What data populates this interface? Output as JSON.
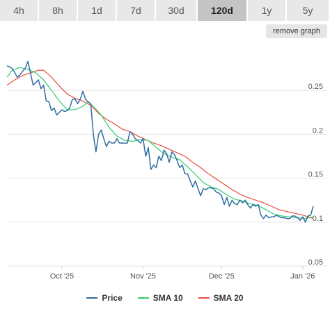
{
  "tabs": [
    {
      "label": "4h",
      "active": false
    },
    {
      "label": "8h",
      "active": false
    },
    {
      "label": "1d",
      "active": false
    },
    {
      "label": "7d",
      "active": false
    },
    {
      "label": "30d",
      "active": false
    },
    {
      "label": "120d",
      "active": true
    },
    {
      "label": "1y",
      "active": false
    },
    {
      "label": "5y",
      "active": false
    }
  ],
  "remove_button": {
    "label": "remove graph"
  },
  "colors": {
    "price": "#2e6da4",
    "sma10": "#2ecc71",
    "sma20": "#e74c3c",
    "grid": "#e6e6e6"
  },
  "chart_data": {
    "type": "line",
    "ylim": [
      0.05,
      0.3
    ],
    "yticks": [
      {
        "value": 0.25,
        "label": "0.25"
      },
      {
        "value": 0.2,
        "label": "0.2"
      },
      {
        "value": 0.15,
        "label": "0.15"
      },
      {
        "value": 0.1,
        "label": "0.1"
      },
      {
        "value": 0.05,
        "label": "0.05"
      }
    ],
    "xlim": [
      "2025-09-10",
      "2026-01-10"
    ],
    "xticks": [
      {
        "value": "2025-10-01",
        "label": "Oct '25"
      },
      {
        "value": "2025-11-01",
        "label": "Nov '25"
      },
      {
        "value": "2025-12-01",
        "label": "Dec '25"
      },
      {
        "value": "2026-01-01",
        "label": "Jan '26"
      }
    ],
    "series": [
      {
        "name": "Price",
        "points": [
          [
            "2025-09-10",
            0.278
          ],
          [
            "2025-09-11",
            0.277
          ],
          [
            "2025-09-12",
            0.275
          ],
          [
            "2025-09-13",
            0.27
          ],
          [
            "2025-09-14",
            0.265
          ],
          [
            "2025-09-15",
            0.268
          ],
          [
            "2025-09-16",
            0.272
          ],
          [
            "2025-09-17",
            0.275
          ],
          [
            "2025-09-18",
            0.283
          ],
          [
            "2025-09-19",
            0.27
          ],
          [
            "2025-09-20",
            0.256
          ],
          [
            "2025-09-21",
            0.259
          ],
          [
            "2025-09-22",
            0.262
          ],
          [
            "2025-09-23",
            0.252
          ],
          [
            "2025-09-24",
            0.256
          ],
          [
            "2025-09-25",
            0.238
          ],
          [
            "2025-09-26",
            0.237
          ],
          [
            "2025-09-27",
            0.227
          ],
          [
            "2025-09-28",
            0.23
          ],
          [
            "2025-09-29",
            0.222
          ],
          [
            "2025-09-30",
            0.225
          ],
          [
            "2025-10-01",
            0.228
          ],
          [
            "2025-10-02",
            0.226
          ],
          [
            "2025-10-03",
            0.227
          ],
          [
            "2025-10-04",
            0.23
          ],
          [
            "2025-10-05",
            0.24
          ],
          [
            "2025-10-06",
            0.24
          ],
          [
            "2025-10-07",
            0.235
          ],
          [
            "2025-10-08",
            0.24
          ],
          [
            "2025-10-09",
            0.249
          ],
          [
            "2025-10-10",
            0.24
          ],
          [
            "2025-10-11",
            0.237
          ],
          [
            "2025-10-12",
            0.235
          ],
          [
            "2025-10-13",
            0.2
          ],
          [
            "2025-10-14",
            0.18
          ],
          [
            "2025-10-15",
            0.2
          ],
          [
            "2025-10-16",
            0.205
          ],
          [
            "2025-10-17",
            0.195
          ],
          [
            "2025-10-18",
            0.186
          ],
          [
            "2025-10-19",
            0.192
          ],
          [
            "2025-10-20",
            0.19
          ],
          [
            "2025-10-21",
            0.19
          ],
          [
            "2025-10-22",
            0.195
          ],
          [
            "2025-10-23",
            0.19
          ],
          [
            "2025-10-24",
            0.19
          ],
          [
            "2025-10-25",
            0.19
          ],
          [
            "2025-10-26",
            0.19
          ],
          [
            "2025-10-27",
            0.203
          ],
          [
            "2025-10-28",
            0.2
          ],
          [
            "2025-10-29",
            0.195
          ],
          [
            "2025-10-30",
            0.193
          ],
          [
            "2025-10-31",
            0.19
          ],
          [
            "2025-11-01",
            0.195
          ],
          [
            "2025-11-02",
            0.175
          ],
          [
            "2025-11-03",
            0.185
          ],
          [
            "2025-11-04",
            0.16
          ],
          [
            "2025-11-05",
            0.165
          ],
          [
            "2025-11-06",
            0.162
          ],
          [
            "2025-11-07",
            0.175
          ],
          [
            "2025-11-08",
            0.17
          ],
          [
            "2025-11-09",
            0.182
          ],
          [
            "2025-11-10",
            0.178
          ],
          [
            "2025-11-11",
            0.168
          ],
          [
            "2025-11-12",
            0.18
          ],
          [
            "2025-11-13",
            0.177
          ],
          [
            "2025-11-14",
            0.17
          ],
          [
            "2025-11-15",
            0.162
          ],
          [
            "2025-11-16",
            0.165
          ],
          [
            "2025-11-17",
            0.155
          ],
          [
            "2025-11-18",
            0.155
          ],
          [
            "2025-11-19",
            0.147
          ],
          [
            "2025-11-20",
            0.14
          ],
          [
            "2025-11-21",
            0.147
          ],
          [
            "2025-11-22",
            0.138
          ],
          [
            "2025-11-23",
            0.13
          ],
          [
            "2025-11-24",
            0.138
          ],
          [
            "2025-11-25",
            0.137
          ],
          [
            "2025-11-26",
            0.139
          ],
          [
            "2025-11-27",
            0.139
          ],
          [
            "2025-11-28",
            0.138
          ],
          [
            "2025-11-29",
            0.134
          ],
          [
            "2025-11-30",
            0.133
          ],
          [
            "2025-12-01",
            0.13
          ],
          [
            "2025-12-02",
            0.12
          ],
          [
            "2025-12-03",
            0.128
          ],
          [
            "2025-12-04",
            0.118
          ],
          [
            "2025-12-05",
            0.125
          ],
          [
            "2025-12-06",
            0.121
          ],
          [
            "2025-12-07",
            0.12
          ],
          [
            "2025-12-08",
            0.125
          ],
          [
            "2025-12-09",
            0.122
          ],
          [
            "2025-12-10",
            0.125
          ],
          [
            "2025-12-11",
            0.12
          ],
          [
            "2025-12-12",
            0.116
          ],
          [
            "2025-12-13",
            0.12
          ],
          [
            "2025-12-14",
            0.118
          ],
          [
            "2025-12-15",
            0.12
          ],
          [
            "2025-12-16",
            0.108
          ],
          [
            "2025-12-17",
            0.104
          ],
          [
            "2025-12-18",
            0.108
          ],
          [
            "2025-12-19",
            0.105
          ],
          [
            "2025-12-20",
            0.106
          ],
          [
            "2025-12-21",
            0.106
          ],
          [
            "2025-12-22",
            0.108
          ],
          [
            "2025-12-23",
            0.106
          ],
          [
            "2025-12-24",
            0.105
          ],
          [
            "2025-12-25",
            0.105
          ],
          [
            "2025-12-26",
            0.104
          ],
          [
            "2025-12-27",
            0.104
          ],
          [
            "2025-12-28",
            0.107
          ],
          [
            "2025-12-29",
            0.107
          ],
          [
            "2025-12-30",
            0.105
          ],
          [
            "2025-12-31",
            0.102
          ],
          [
            "2026-01-01",
            0.106
          ],
          [
            "2026-01-02",
            0.1
          ],
          [
            "2026-01-03",
            0.107
          ],
          [
            "2026-01-04",
            0.108
          ],
          [
            "2026-01-05",
            0.118
          ]
        ]
      },
      {
        "name": "SMA 10",
        "points": [
          [
            "2025-09-10",
            0.265
          ],
          [
            "2025-09-12",
            0.273
          ],
          [
            "2025-09-15",
            0.276
          ],
          [
            "2025-09-18",
            0.274
          ],
          [
            "2025-09-21",
            0.27
          ],
          [
            "2025-09-24",
            0.262
          ],
          [
            "2025-09-27",
            0.25
          ],
          [
            "2025-09-30",
            0.238
          ],
          [
            "2025-10-03",
            0.228
          ],
          [
            "2025-10-06",
            0.228
          ],
          [
            "2025-10-09",
            0.232
          ],
          [
            "2025-10-11",
            0.237
          ],
          [
            "2025-10-13",
            0.232
          ],
          [
            "2025-10-16",
            0.222
          ],
          [
            "2025-10-19",
            0.208
          ],
          [
            "2025-10-22",
            0.198
          ],
          [
            "2025-10-25",
            0.193
          ],
          [
            "2025-10-28",
            0.192
          ],
          [
            "2025-10-31",
            0.194
          ],
          [
            "2025-11-03",
            0.193
          ],
          [
            "2025-11-06",
            0.185
          ],
          [
            "2025-11-09",
            0.178
          ],
          [
            "2025-11-12",
            0.174
          ],
          [
            "2025-11-15",
            0.171
          ],
          [
            "2025-11-18",
            0.163
          ],
          [
            "2025-11-21",
            0.154
          ],
          [
            "2025-11-24",
            0.145
          ],
          [
            "2025-11-27",
            0.14
          ],
          [
            "2025-11-30",
            0.137
          ],
          [
            "2025-12-03",
            0.131
          ],
          [
            "2025-12-06",
            0.126
          ],
          [
            "2025-12-09",
            0.124
          ],
          [
            "2025-12-12",
            0.121
          ],
          [
            "2025-12-15",
            0.119
          ],
          [
            "2025-12-18",
            0.114
          ],
          [
            "2025-12-21",
            0.109
          ],
          [
            "2025-12-24",
            0.107
          ],
          [
            "2025-12-27",
            0.106
          ],
          [
            "2025-12-30",
            0.105
          ],
          [
            "2026-01-02",
            0.104
          ],
          [
            "2026-01-05",
            0.106
          ]
        ]
      },
      {
        "name": "SMA 20",
        "points": [
          [
            "2025-09-10",
            0.256
          ],
          [
            "2025-09-13",
            0.262
          ],
          [
            "2025-09-16",
            0.267
          ],
          [
            "2025-09-19",
            0.27
          ],
          [
            "2025-09-22",
            0.273
          ],
          [
            "2025-09-24",
            0.273
          ],
          [
            "2025-09-27",
            0.265
          ],
          [
            "2025-09-30",
            0.255
          ],
          [
            "2025-10-03",
            0.246
          ],
          [
            "2025-10-06",
            0.241
          ],
          [
            "2025-10-09",
            0.238
          ],
          [
            "2025-10-12",
            0.233
          ],
          [
            "2025-10-15",
            0.224
          ],
          [
            "2025-10-18",
            0.217
          ],
          [
            "2025-10-21",
            0.212
          ],
          [
            "2025-10-24",
            0.206
          ],
          [
            "2025-10-27",
            0.203
          ],
          [
            "2025-10-30",
            0.198
          ],
          [
            "2025-11-02",
            0.194
          ],
          [
            "2025-11-05",
            0.19
          ],
          [
            "2025-11-08",
            0.187
          ],
          [
            "2025-11-11",
            0.183
          ],
          [
            "2025-11-14",
            0.179
          ],
          [
            "2025-11-17",
            0.175
          ],
          [
            "2025-11-20",
            0.168
          ],
          [
            "2025-11-23",
            0.162
          ],
          [
            "2025-11-26",
            0.155
          ],
          [
            "2025-11-29",
            0.149
          ],
          [
            "2025-12-02",
            0.143
          ],
          [
            "2025-12-05",
            0.137
          ],
          [
            "2025-12-08",
            0.132
          ],
          [
            "2025-12-11",
            0.128
          ],
          [
            "2025-12-14",
            0.125
          ],
          [
            "2025-12-17",
            0.122
          ],
          [
            "2025-12-20",
            0.118
          ],
          [
            "2025-12-23",
            0.114
          ],
          [
            "2025-12-26",
            0.112
          ],
          [
            "2025-12-29",
            0.11
          ],
          [
            "2026-01-01",
            0.108
          ],
          [
            "2026-01-05",
            0.104
          ]
        ]
      }
    ]
  }
}
